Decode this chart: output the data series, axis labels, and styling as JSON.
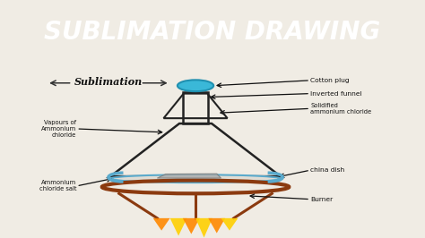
{
  "title": "SUBLIMATION DRAWING",
  "title_color": "#1a4db5",
  "title_bg": "#1a4db5",
  "diagram_bg": "#f0ece4",
  "labels": {
    "cotton_plug": "Cotton plug",
    "inverted_funnel": "Inverted funnel",
    "solidified": "Solidified\nammonium chloride",
    "china_dish": "china dish",
    "burner": "Burner",
    "vapours": "Vapours of\nAmmonium\nchloride",
    "ammonium_salt": "Ammonium\nchloride salt",
    "sublimation": "Sublimation"
  },
  "colors": {
    "cotton_plug_face": "#3ab8d8",
    "cotton_plug_edge": "#2090b0",
    "funnel_line": "#222222",
    "flask_line": "#222222",
    "china_dish_blue": "#5aaacc",
    "china_dish_face": "#e0ddd5",
    "burner_brown": "#8B3A0F",
    "flame_orange": "#FF8800",
    "flame_yellow": "#FFD000",
    "label_arrow": "#111111",
    "text_color": "#222222",
    "salt_gray": "#aaaaaa",
    "tripod_brown": "#8B3A0F"
  }
}
